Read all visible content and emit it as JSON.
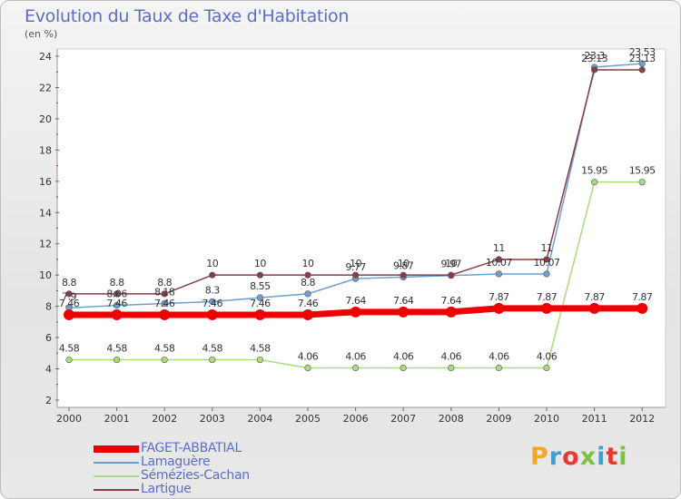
{
  "title": "Evolution du Taux de Taxe d'Habitation",
  "subtitle": "(en %)",
  "logo": {
    "text": "Proxiti",
    "colors": [
      "#f5a623",
      "#3aa1d8",
      "#e8392f",
      "#7cc242",
      "#3aa1d8",
      "#e8392f",
      "#7cc242"
    ]
  },
  "chart_data": {
    "type": "line",
    "title": "Evolution du Taux de Taxe d'Habitation",
    "ylabel": "(en %)",
    "x": [
      "2000",
      "2001",
      "2002",
      "2003",
      "2004",
      "2005",
      "2006",
      "2007",
      "2008",
      "2009",
      "2010",
      "2011",
      "2012"
    ],
    "ylim": [
      2,
      24
    ],
    "yticks": [
      2,
      4,
      6,
      8,
      10,
      12,
      14,
      16,
      18,
      20,
      22,
      24
    ],
    "grid": false,
    "legend_position": "bottom-left",
    "series": [
      {
        "name": "FAGET-ABBATIAL",
        "color": "#ee0000",
        "width": 7,
        "values": [
          7.46,
          7.46,
          7.46,
          7.46,
          7.46,
          7.46,
          7.64,
          7.64,
          7.64,
          7.87,
          7.87,
          7.87,
          7.87
        ],
        "labels": [
          "7.46",
          "7.46",
          "7.46",
          "7.46",
          "7.46",
          "7.46",
          "7.64",
          "7.64",
          "7.64",
          "7.87",
          "7.87",
          "7.87",
          "7.87"
        ]
      },
      {
        "name": "Lamaguère",
        "color": "#6f9fcf",
        "width": 1.5,
        "values": [
          7.9,
          8.06,
          8.18,
          8.3,
          8.55,
          8.8,
          9.77,
          9.87,
          9.97,
          10.07,
          10.07,
          23.3,
          23.53
        ],
        "labels": [
          "7.9",
          "8.06",
          "8.18",
          "8.3",
          "8.55",
          "8.8",
          "9.77",
          "9.87",
          "9.97",
          "10.07",
          "10.07",
          "23.3",
          "23.53"
        ]
      },
      {
        "name": "Sémézies-Cachan",
        "color": "#a9dc7f",
        "width": 1.5,
        "values": [
          4.58,
          4.58,
          4.58,
          4.58,
          4.58,
          4.06,
          4.06,
          4.06,
          4.06,
          4.06,
          4.06,
          15.95,
          15.95
        ],
        "labels": [
          "4.58",
          "4.58",
          "4.58",
          "4.58",
          "4.58",
          "4.06",
          "4.06",
          "4.06",
          "4.06",
          "4.06",
          "4.06",
          "15.95",
          "15.95"
        ]
      },
      {
        "name": "Lartigue",
        "color": "#8a3d45",
        "width": 1.5,
        "values": [
          8.8,
          8.8,
          8.8,
          10,
          10,
          10,
          10,
          10,
          10,
          11,
          11,
          23.13,
          23.13
        ],
        "labels": [
          "8.8",
          "8.8",
          "8.8",
          "10",
          "10",
          "10",
          "10",
          "10",
          "10",
          "11",
          "11",
          "23.13",
          "23.13"
        ]
      }
    ]
  }
}
